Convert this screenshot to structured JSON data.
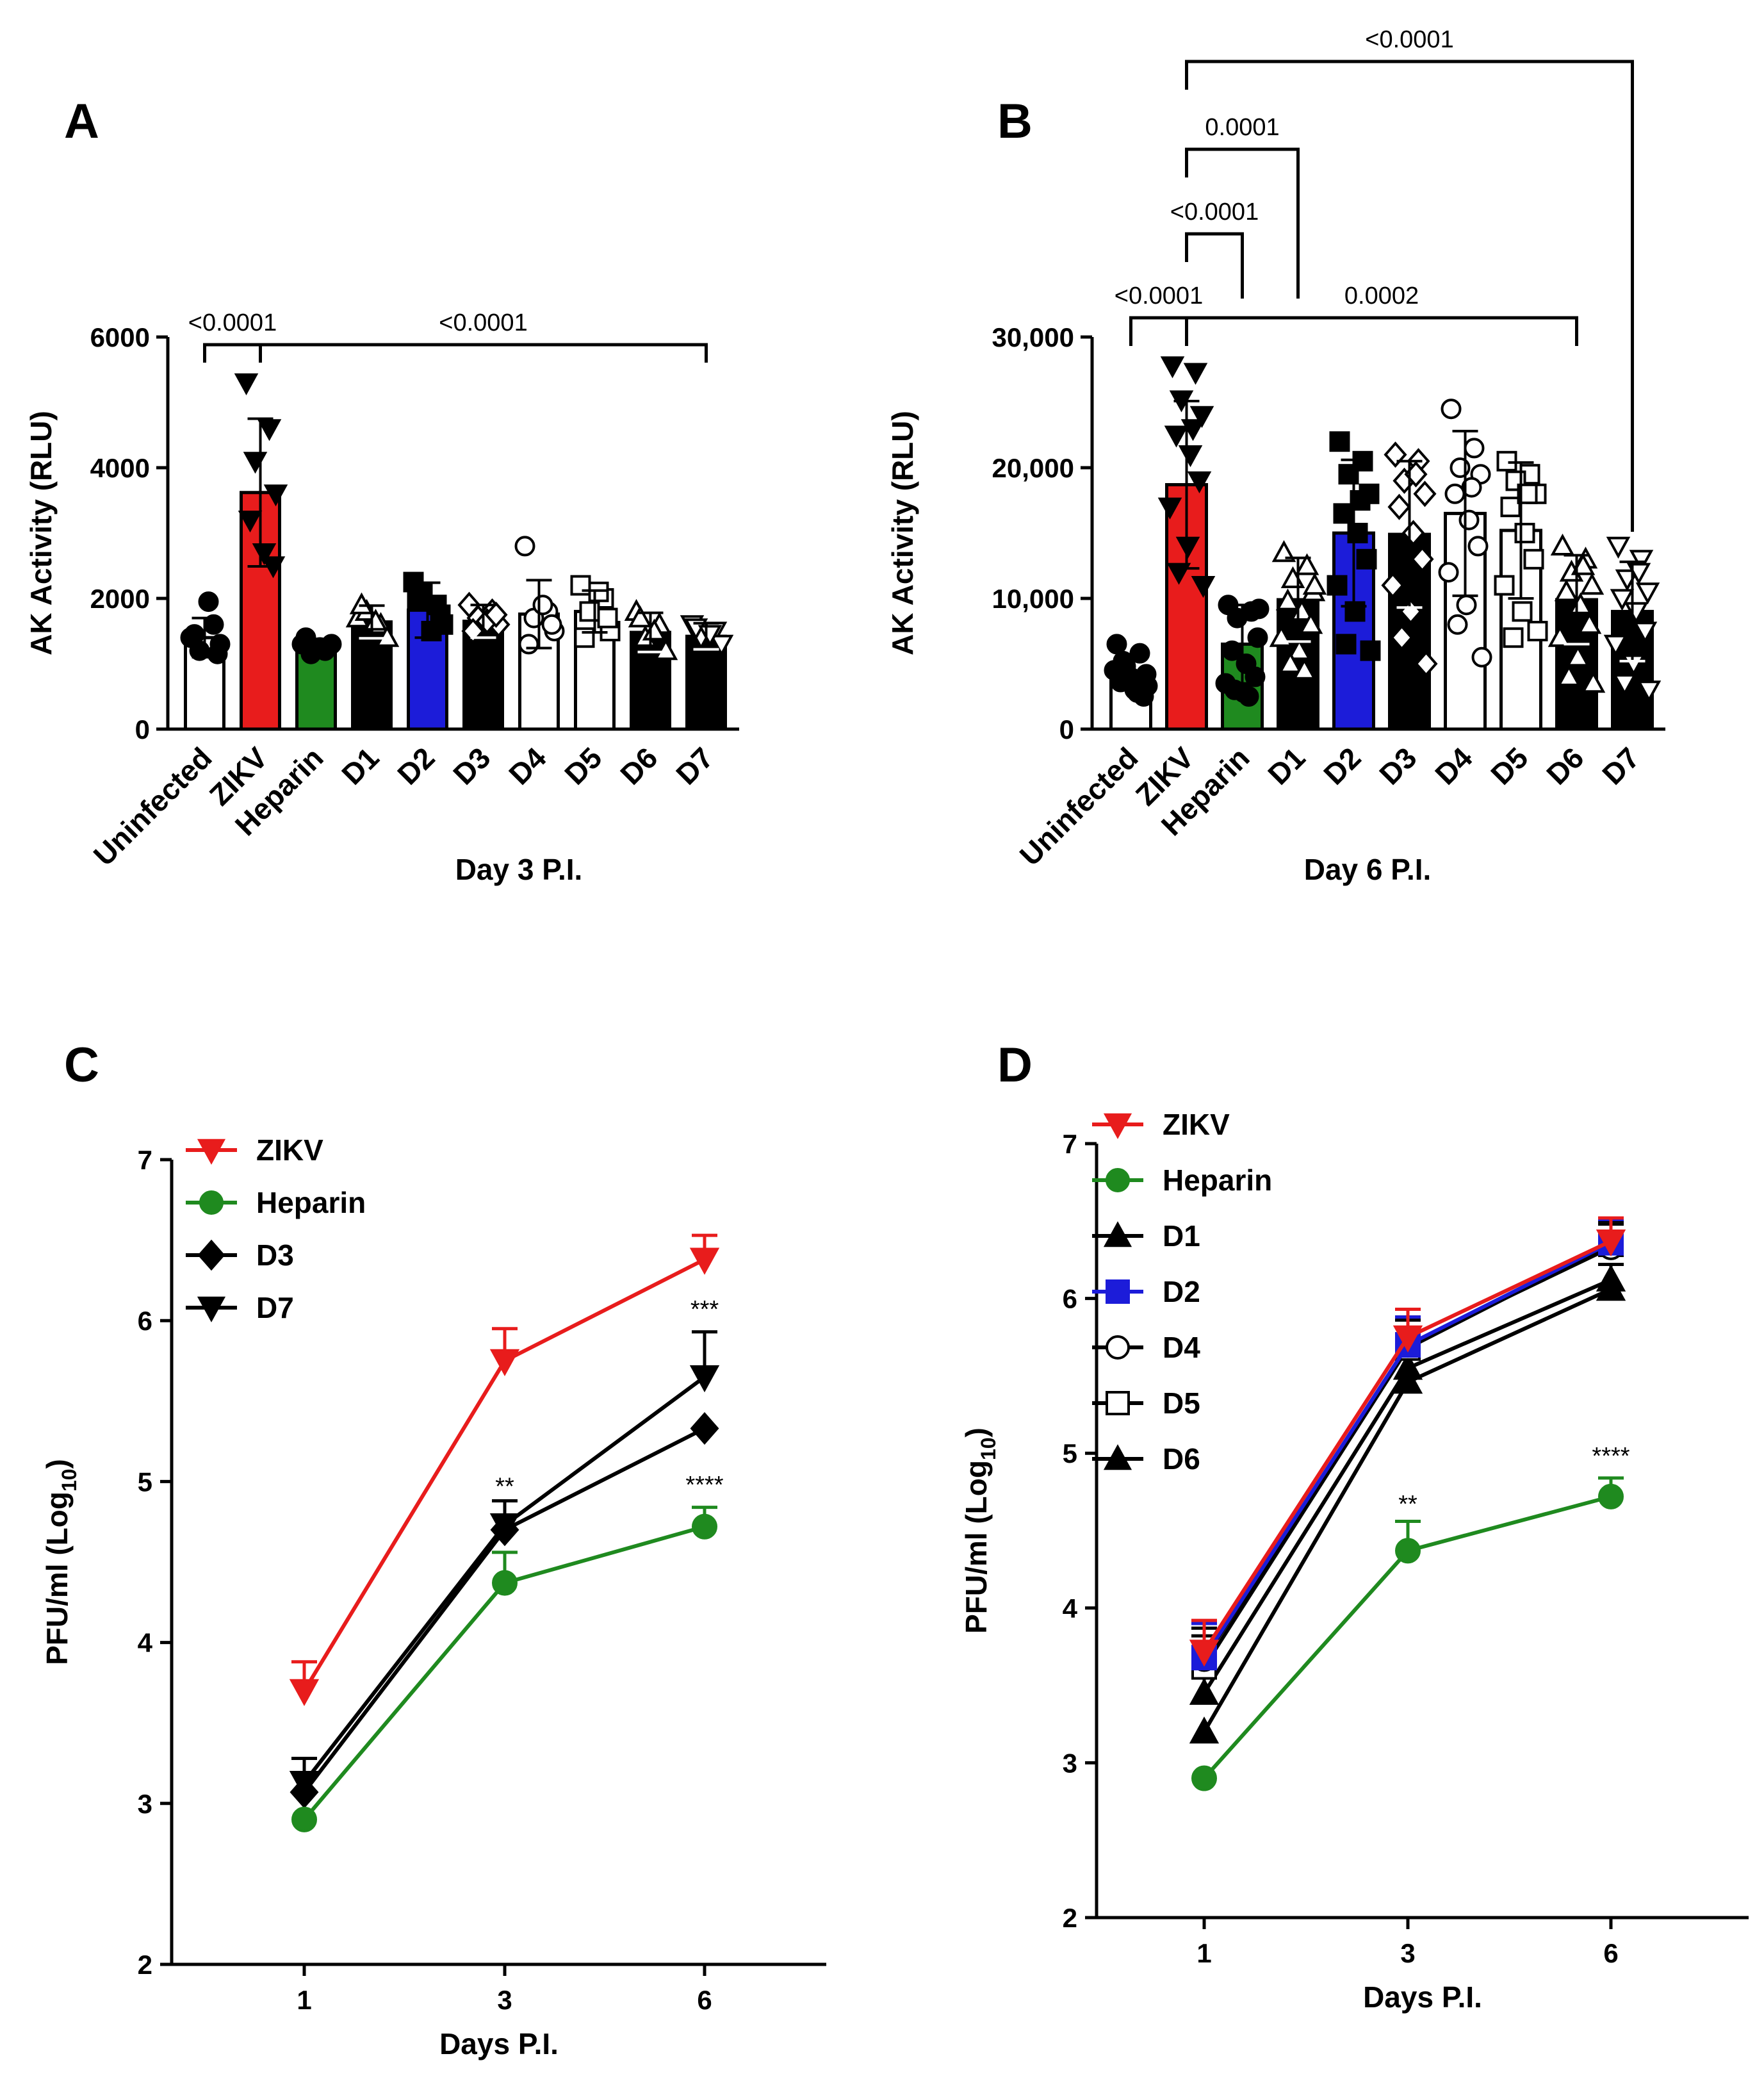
{
  "figure": {
    "panels": [
      "A",
      "B",
      "C",
      "D"
    ]
  },
  "colors": {
    "zikv": "#e81c1c",
    "heparin": "#1f8a1f",
    "d2": "#1c1cd9",
    "black": "#000000",
    "white": "#ffffff"
  },
  "chart_data": [
    {
      "panel": "A",
      "type": "bar",
      "categories": [
        "Uninfected",
        "ZIKV",
        "Heparin",
        "D1",
        "D2",
        "D3",
        "D4",
        "D5",
        "D6",
        "D7"
      ],
      "values": [
        1400,
        3620,
        1260,
        1640,
        1820,
        1650,
        1760,
        1800,
        1480,
        1420
      ],
      "errors": [
        300,
        1130,
        120,
        250,
        420,
        250,
        520,
        320,
        300,
        200
      ],
      "fills": [
        "white",
        "zikv",
        "heparin",
        "black",
        "d2",
        "black",
        "white",
        "white",
        "black",
        "black"
      ],
      "markers": [
        "circle-filled",
        "tri-down-filled",
        "circle-filled",
        "tri-up-open",
        "square-filled",
        "diamond-open",
        "circle-open",
        "square-open",
        "tri-up-open",
        "tri-down-open"
      ],
      "points": [
        [
          1400,
          1600,
          1200,
          1300,
          1450,
          1950,
          1150
        ],
        [
          5300,
          4600,
          4100,
          3600,
          3200,
          2700,
          2500
        ],
        [
          1300,
          1200,
          1150,
          1300,
          1400,
          1250
        ],
        [
          1700,
          1600,
          1800,
          1400,
          1900,
          1650
        ],
        [
          2250,
          1900,
          2100,
          1600,
          2000,
          1500,
          1750
        ],
        [
          1900,
          1800,
          1700,
          1600,
          1500,
          1650,
          1750
        ],
        [
          2800,
          1800,
          1700,
          1500,
          1300,
          1900,
          1600
        ],
        [
          2200,
          2000,
          1800,
          1500,
          1400,
          2100,
          1700
        ],
        [
          1800,
          1600,
          1400,
          1200,
          1700,
          1500
        ],
        [
          1600,
          1500,
          1400,
          1300,
          1550,
          1450
        ]
      ],
      "ylim": [
        0,
        6000
      ],
      "yticks": [
        "0",
        "2000",
        "4000",
        "6000"
      ],
      "ylabel": "AK Activity (RLU)",
      "xlabel": "Day 3 P.I.",
      "comparisons": [
        {
          "from": 0,
          "to": 1,
          "level": 0,
          "label": "<0.0001"
        },
        {
          "from": 1,
          "to": 9,
          "level": 0,
          "label": "<0.0001"
        }
      ]
    },
    {
      "panel": "B",
      "type": "bar",
      "categories": [
        "Uninfected",
        "ZIKV",
        "Heparin",
        "D1",
        "D2",
        "D3",
        "D4",
        "D5",
        "D6",
        "D7"
      ],
      "values": [
        4200,
        18700,
        6500,
        9900,
        15000,
        14900,
        16500,
        15200,
        9900,
        9000
      ],
      "errors": [
        1000,
        6400,
        3000,
        3200,
        5600,
        5600,
        6300,
        5200,
        3400,
        3800
      ],
      "fills": [
        "white",
        "zikv",
        "heparin",
        "black",
        "d2",
        "black",
        "white",
        "white",
        "black",
        "black"
      ],
      "markers": [
        "circle-filled",
        "tri-down-filled",
        "circle-filled",
        "tri-up-open",
        "square-filled",
        "diamond-open",
        "circle-open",
        "square-open",
        "tri-up-open",
        "tri-down-open"
      ],
      "points": [
        [
          6500,
          5800,
          4800,
          4200,
          3600,
          3000,
          2500,
          4500,
          3900,
          5200,
          3300,
          2800
        ],
        [
          27800,
          27300,
          25200,
          24000,
          22500,
          21000,
          19000,
          17000,
          14000,
          12000,
          11000,
          23000
        ],
        [
          9500,
          9000,
          8500,
          7000,
          6000,
          5000,
          4000,
          3500,
          2800,
          3000,
          9200,
          2500
        ],
        [
          13500,
          12500,
          11500,
          10500,
          9800,
          9000,
          8000,
          7000,
          6000,
          5000,
          11000,
          4500
        ],
        [
          22000,
          20500,
          19500,
          18000,
          16500,
          15000,
          13000,
          11000,
          9000,
          6500,
          6000,
          17500
        ],
        [
          21000,
          20500,
          19000,
          18000,
          17000,
          15000,
          13000,
          11000,
          9000,
          7000,
          5000,
          19500
        ],
        [
          24500,
          21500,
          20000,
          19500,
          18000,
          16000,
          14000,
          12000,
          9500,
          8000,
          5500,
          18500
        ],
        [
          20500,
          19500,
          19000,
          18000,
          17000,
          15000,
          13000,
          11000,
          9000,
          7000,
          7500,
          18000
        ],
        [
          14000,
          13000,
          12000,
          11000,
          10500,
          9500,
          8000,
          7000,
          5500,
          4000,
          3500,
          12500
        ],
        [
          14000,
          13000,
          11500,
          10500,
          10000,
          9000,
          7500,
          6500,
          5000,
          3500,
          3000,
          12000
        ]
      ],
      "ylim": [
        0,
        30000
      ],
      "yticks": [
        "0",
        "10,000",
        "20,000",
        "30,000"
      ],
      "ylabel": "AK Activity (RLU)",
      "xlabel": "Day 6 P.I.",
      "comparisons": [
        {
          "from": 0,
          "to": 1,
          "level": 0,
          "label": "<0.0001"
        },
        {
          "from": 1,
          "to": 8,
          "level": 0,
          "label": "0.0002"
        },
        {
          "from": 1,
          "to": 2,
          "level": 1,
          "label": "<0.0001"
        },
        {
          "from": 1,
          "to": 3,
          "level": 2,
          "label": "0.0001"
        },
        {
          "from": 1,
          "to": 9,
          "level": 3,
          "label": "<0.0001"
        }
      ]
    },
    {
      "panel": "C",
      "type": "line",
      "x": [
        "1",
        "3",
        "6"
      ],
      "xlabel": "Days P.I.",
      "ylabel": "PFU/ml (Log",
      "ylabel_sub": "10",
      "ylim": [
        2,
        7
      ],
      "yticks": [
        "2",
        "3",
        "4",
        "5",
        "6",
        "7"
      ],
      "series": [
        {
          "name": "ZIKV",
          "values": [
            3.7,
            5.75,
            6.38
          ],
          "errors": [
            0.18,
            0.2,
            0.15
          ],
          "color": "zikv",
          "marker": "tri-down-filled"
        },
        {
          "name": "Heparin",
          "values": [
            2.9,
            4.37,
            4.72
          ],
          "errors": [
            0.0,
            0.19,
            0.12
          ],
          "color": "heparin",
          "marker": "circle-filled"
        },
        {
          "name": "D3",
          "values": [
            3.07,
            4.7,
            5.33
          ],
          "errors": [
            0.0,
            0.0,
            0.0
          ],
          "color": "black",
          "marker": "diamond-filled"
        },
        {
          "name": "D7",
          "values": [
            3.13,
            4.73,
            5.65
          ],
          "errors": [
            0.15,
            0.15,
            0.28
          ],
          "color": "black",
          "marker": "tri-down-filled"
        }
      ],
      "annotations": [
        {
          "x": 1,
          "y": 4.92,
          "text": "**"
        },
        {
          "x": 2,
          "y": 6.02,
          "text": "***"
        },
        {
          "x": 2,
          "y": 4.93,
          "text": "****"
        }
      ]
    },
    {
      "panel": "D",
      "type": "line",
      "x": [
        "1",
        "3",
        "6"
      ],
      "xlabel": "Days P.I.",
      "ylabel": "PFU/ml (Log",
      "ylabel_sub": "10",
      "ylim": [
        2,
        7
      ],
      "yticks": [
        "2",
        "3",
        "4",
        "5",
        "6",
        "7"
      ],
      "series": [
        {
          "name": "ZIKV",
          "values": [
            3.72,
            5.75,
            6.37
          ],
          "errors": [
            0.2,
            0.18,
            0.15
          ],
          "color": "zikv",
          "marker": "tri-down-filled"
        },
        {
          "name": "Heparin",
          "values": [
            2.9,
            4.37,
            4.72
          ],
          "errors": [
            0.0,
            0.19,
            0.12
          ],
          "color": "heparin",
          "marker": "circle-filled"
        },
        {
          "name": "D1",
          "values": [
            3.2,
            5.46,
            6.06
          ],
          "errors": [
            0.0,
            0.0,
            0.0
          ],
          "color": "black",
          "marker": "tri-up-filled"
        },
        {
          "name": "D2",
          "values": [
            3.68,
            5.7,
            6.36
          ],
          "errors": [
            0.22,
            0.18,
            0.15
          ],
          "color": "d2",
          "marker": "square-filled"
        },
        {
          "name": "D4",
          "values": [
            3.67,
            5.7,
            6.33
          ],
          "errors": [
            0.2,
            0.18,
            0.15
          ],
          "color": "black",
          "marker": "circle-open"
        },
        {
          "name": "D5",
          "values": [
            3.62,
            5.68,
            6.35
          ],
          "errors": [
            0.2,
            0.18,
            0.15
          ],
          "color": "black",
          "marker": "square-open"
        },
        {
          "name": "D6",
          "values": [
            3.45,
            5.55,
            6.12
          ],
          "errors": [
            0.15,
            0.12,
            0.1
          ],
          "color": "black",
          "marker": "tri-up-filled"
        }
      ],
      "annotations": [
        {
          "x": 1,
          "y": 4.62,
          "text": "**"
        },
        {
          "x": 2,
          "y": 4.93,
          "text": "****"
        }
      ]
    }
  ]
}
